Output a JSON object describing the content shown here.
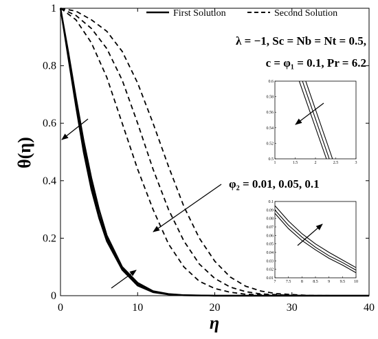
{
  "chart_data": {
    "type": "line",
    "xlabel": "η",
    "ylabel": "θ(η)",
    "xlim": [
      0,
      40
    ],
    "ylim": [
      0,
      1
    ],
    "x_ticks": [
      0,
      10,
      20,
      30,
      40
    ],
    "y_ticks": [
      0,
      0.2,
      0.4,
      0.6,
      0.8,
      1
    ],
    "y_tick_labels": [
      "0",
      "0.2",
      "0.4",
      "0.6",
      "0.8",
      "1"
    ],
    "legend": {
      "placement": "top-right",
      "entries": [
        {
          "label": "First Solution",
          "style": "solid"
        },
        {
          "label": "Second Solution",
          "style": "dashed"
        }
      ]
    },
    "annotations": {
      "params_line1": "λ = −1, Sc = Nb = Nt = 0.5,",
      "params_line2": "c = φ₁ = 0.1, Pr = 6.2",
      "phi2_label": "φ₂ = 0.01, 0.05, 0.1"
    },
    "series": [
      {
        "style": "solid",
        "color": "#000000",
        "x": [
          0,
          1,
          2,
          3,
          4,
          5,
          6,
          8,
          10,
          12,
          14,
          16,
          20,
          40
        ],
        "y": [
          1,
          0.83,
          0.66,
          0.5,
          0.37,
          0.27,
          0.19,
          0.09,
          0.035,
          0.012,
          0.004,
          0.001,
          0,
          0
        ]
      },
      {
        "style": "solid",
        "color": "#000000",
        "x": [
          0,
          1,
          2,
          3,
          4,
          5,
          6,
          8,
          10,
          12,
          14,
          16,
          20,
          40
        ],
        "y": [
          1,
          0.84,
          0.67,
          0.52,
          0.39,
          0.28,
          0.2,
          0.095,
          0.04,
          0.014,
          0.005,
          0.0015,
          0,
          0
        ]
      },
      {
        "style": "solid",
        "color": "#000000",
        "x": [
          0,
          1,
          2,
          3,
          4,
          5,
          6,
          8,
          10,
          12,
          14,
          16,
          20,
          40
        ],
        "y": [
          1,
          0.85,
          0.69,
          0.54,
          0.41,
          0.3,
          0.21,
          0.1,
          0.045,
          0.016,
          0.006,
          0.002,
          0,
          0
        ]
      },
      {
        "style": "dashed",
        "color": "#000000",
        "x": [
          0,
          2,
          4,
          6,
          8,
          10,
          12,
          14,
          16,
          18,
          20,
          22,
          24,
          28,
          32,
          40
        ],
        "y": [
          1,
          0.96,
          0.88,
          0.76,
          0.6,
          0.44,
          0.3,
          0.18,
          0.1,
          0.05,
          0.025,
          0.012,
          0.005,
          0.001,
          0,
          0
        ]
      },
      {
        "style": "dashed",
        "color": "#000000",
        "x": [
          0,
          2,
          4,
          6,
          8,
          10,
          12,
          14,
          16,
          18,
          20,
          22,
          24,
          26,
          30,
          34,
          40
        ],
        "y": [
          1,
          0.975,
          0.93,
          0.86,
          0.75,
          0.6,
          0.44,
          0.3,
          0.19,
          0.11,
          0.06,
          0.03,
          0.014,
          0.006,
          0.001,
          0,
          0
        ]
      },
      {
        "style": "dashed",
        "color": "#000000",
        "x": [
          0,
          2,
          4,
          6,
          8,
          10,
          12,
          14,
          16,
          18,
          20,
          22,
          24,
          26,
          28,
          32,
          36,
          40
        ],
        "y": [
          1,
          0.99,
          0.96,
          0.92,
          0.85,
          0.74,
          0.6,
          0.45,
          0.31,
          0.2,
          0.12,
          0.065,
          0.033,
          0.016,
          0.007,
          0.001,
          0,
          0
        ]
      }
    ],
    "insets": [
      {
        "position": "upper-right",
        "xlim": [
          1,
          3
        ],
        "ylim": [
          0.5,
          0.6
        ],
        "x_ticks": [
          1,
          1.5,
          2,
          2.5,
          3
        ],
        "x_tick_labels": [
          "1",
          "1.5",
          "2",
          "2.5",
          "3"
        ],
        "y_ticks": [
          0.5,
          0.52,
          0.54,
          0.56,
          0.58,
          0.6
        ],
        "y_tick_labels": [
          "0.5",
          "0.52",
          "0.54",
          "0.56",
          "0.58",
          "0.6"
        ],
        "series": [
          {
            "x": [
              1.6,
              2.27
            ],
            "y": [
              0.6,
              0.5
            ]
          },
          {
            "x": [
              1.68,
              2.34
            ],
            "y": [
              0.6,
              0.5
            ]
          },
          {
            "x": [
              1.76,
              2.42
            ],
            "y": [
              0.6,
              0.5
            ]
          }
        ]
      },
      {
        "position": "lower-right",
        "xlim": [
          7,
          10
        ],
        "ylim": [
          0.01,
          0.1
        ],
        "x_ticks": [
          7,
          7.5,
          8,
          8.5,
          9,
          9.5,
          10
        ],
        "x_tick_labels": [
          "7",
          "7.5",
          "8",
          "8.5",
          "9",
          "9.5",
          "10"
        ],
        "y_ticks": [
          0.01,
          0.02,
          0.03,
          0.04,
          0.05,
          0.06,
          0.07,
          0.08,
          0.09,
          0.1
        ],
        "y_tick_labels": [
          "0.01",
          "0.02",
          "0.03",
          "0.04",
          "0.05",
          "0.06",
          "0.07",
          "0.08",
          "0.09",
          "0.1"
        ],
        "series": [
          {
            "x": [
              7,
              7.5,
              8,
              8.5,
              9,
              9.5,
              10
            ],
            "y": [
              0.086,
              0.068,
              0.054,
              0.043,
              0.033,
              0.025,
              0.016
            ]
          },
          {
            "x": [
              7,
              7.5,
              8,
              8.5,
              9,
              9.5,
              10
            ],
            "y": [
              0.09,
              0.072,
              0.058,
              0.046,
              0.036,
              0.028,
              0.019
            ]
          },
          {
            "x": [
              7,
              7.5,
              8,
              8.5,
              9,
              9.5,
              10
            ],
            "y": [
              0.095,
              0.077,
              0.062,
              0.05,
              0.04,
              0.031,
              0.022
            ]
          }
        ]
      }
    ]
  }
}
